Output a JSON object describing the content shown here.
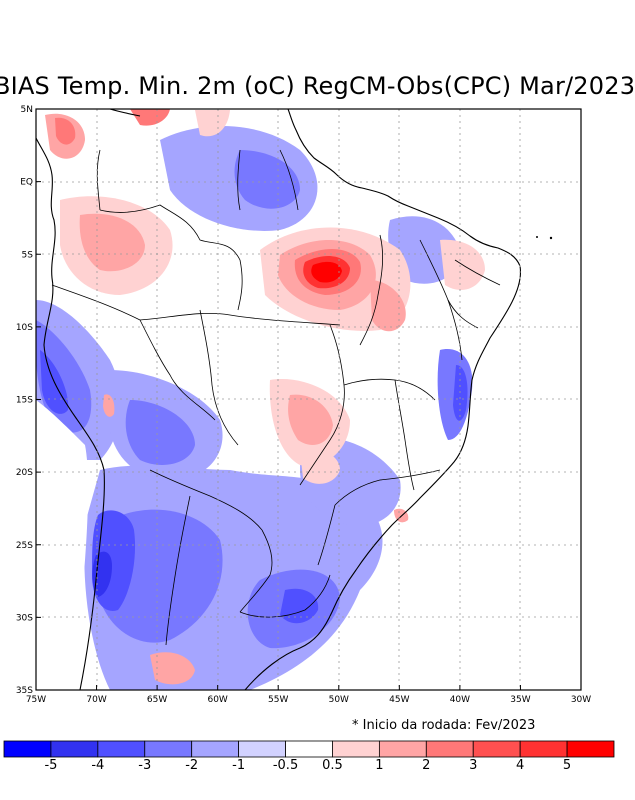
{
  "title": "BIAS Temp. Min. 2m (oC) RegCM-Obs(CPC) Mar/2023",
  "note": "* Inicio da rodada: Fev/2023",
  "axes": {
    "lon_labels": [
      "75W",
      "70W",
      "65W",
      "60W",
      "55W",
      "50W",
      "45W",
      "40W",
      "35W",
      "30W"
    ],
    "lat_labels": [
      "5N",
      "EQ",
      "5S",
      "10S",
      "15S",
      "20S",
      "25S",
      "30S",
      "35S"
    ]
  },
  "colorbar": {
    "labels": [
      "-5",
      "-4",
      "-3",
      "-2",
      "-1",
      "-0.5",
      "0.5",
      "1",
      "2",
      "3",
      "4",
      "5"
    ],
    "colors": [
      "#0000ff",
      "#3232f0",
      "#5050ff",
      "#7878ff",
      "#a5a5ff",
      "#d2d2ff",
      "#ffffff",
      "#ffd2d2",
      "#ffa5a5",
      "#ff7878",
      "#ff5050",
      "#ff3232",
      "#ff0000"
    ]
  },
  "map_data": {
    "colors": {
      "land_line": "#000000",
      "grid": "#9a9a9a"
    },
    "lon_range": [
      -75,
      -30
    ],
    "lat_range": [
      -35,
      5
    ]
  }
}
